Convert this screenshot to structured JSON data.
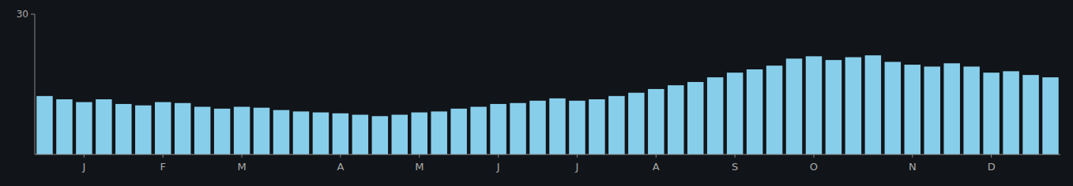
{
  "chart_data": {
    "type": "bar",
    "categories": [
      null,
      null,
      "J",
      null,
      null,
      null,
      "F",
      null,
      null,
      null,
      "M",
      null,
      null,
      null,
      null,
      "A",
      null,
      null,
      null,
      "M",
      null,
      null,
      null,
      "J",
      null,
      null,
      null,
      "J",
      null,
      null,
      null,
      "A",
      null,
      null,
      null,
      "S",
      null,
      null,
      null,
      "O",
      null,
      null,
      null,
      null,
      "N",
      null,
      null,
      null,
      "D",
      null,
      null,
      null
    ],
    "values": [
      12.5,
      11.8,
      11.2,
      11.8,
      10.8,
      10.5,
      11.2,
      11.0,
      10.2,
      9.8,
      10.2,
      10.0,
      9.5,
      9.2,
      9.0,
      8.8,
      8.5,
      8.2,
      8.5,
      9.0,
      9.2,
      9.8,
      10.2,
      10.8,
      11.0,
      11.5,
      12.0,
      11.5,
      11.8,
      12.5,
      13.2,
      14.0,
      14.8,
      15.5,
      16.5,
      17.5,
      18.2,
      19.0,
      20.5,
      21.0,
      20.2,
      20.8,
      21.2,
      19.8,
      19.2,
      18.8,
      19.5,
      18.8,
      17.5,
      17.8,
      17.0,
      16.5
    ],
    "color": "#87CEEB",
    "ylim": [
      0,
      30
    ],
    "yticks": [
      30
    ],
    "grid": false
  }
}
